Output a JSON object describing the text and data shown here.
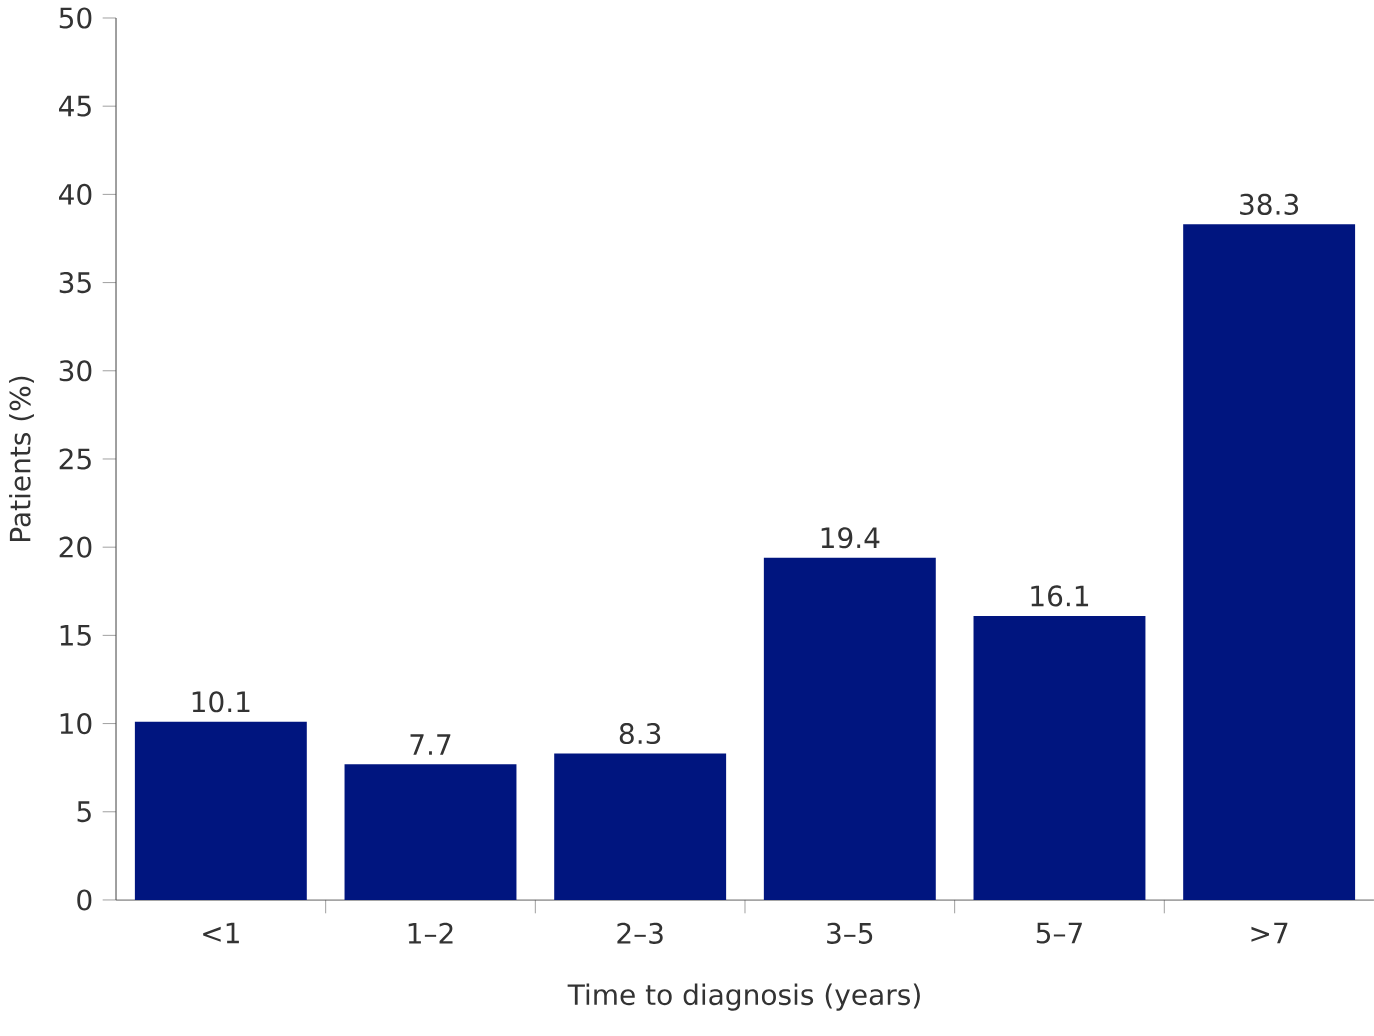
{
  "chart_data": {
    "type": "bar",
    "xlabel": "Time to diagnosis (years)",
    "ylabel": "Patients (%)",
    "categories": [
      "<1",
      "1–2",
      "2–3",
      "3–5",
      "5–7",
      ">7"
    ],
    "values": [
      10.1,
      7.7,
      8.3,
      19.4,
      16.1,
      38.3
    ],
    "color": "#00157f",
    "ylim": [
      0,
      50
    ],
    "yticks": [
      0,
      5,
      10,
      15,
      20,
      25,
      30,
      35,
      40,
      45,
      50
    ],
    "data_labels": true,
    "grid": false
  }
}
